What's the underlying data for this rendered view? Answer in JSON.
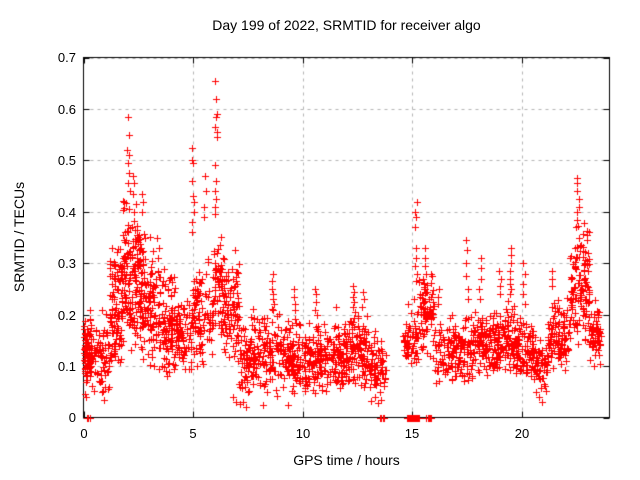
{
  "figure": {
    "title": "Day 199 of 2022, SRMTID for receiver algo",
    "background_color": "#ffffff",
    "border_color": "#000000",
    "grid_color": "#b4b4b4"
  },
  "chart_data": {
    "type": "scatter",
    "title": "Day 199 of 2022, SRMTID for receiver algo",
    "xlabel": "GPS time / hours",
    "ylabel": "SRMTID / TECUs",
    "xlim": [
      0,
      24
    ],
    "ylim": [
      0,
      0.7
    ],
    "xticks": [
      0,
      5,
      10,
      15,
      20
    ],
    "yticks": [
      0,
      0.1,
      0.2,
      0.3,
      0.4,
      0.5,
      0.6,
      0.7
    ],
    "xtick_labels": [
      "0",
      "5",
      "10",
      "15",
      "20"
    ],
    "ytick_labels": [
      "0",
      "0.1",
      "0.2",
      "0.3",
      "0.4",
      "0.5",
      "0.6",
      "0.7"
    ],
    "grid": true,
    "legend": "none",
    "marker": "plus",
    "marker_color": "#ff0000",
    "series_name": "SRMTID",
    "data_gap_hours": [
      13.8,
      14.6
    ],
    "seed": 199,
    "bands": [
      [
        0.0,
        0.35,
        85,
        0.13,
        0.05,
        0.06,
        0.2
      ],
      [
        0.35,
        1.2,
        70,
        0.125,
        0.06,
        0.05,
        0.22
      ],
      [
        1.2,
        1.8,
        110,
        0.2,
        0.1,
        0.08,
        0.4
      ],
      [
        1.8,
        2.6,
        150,
        0.28,
        0.11,
        0.12,
        0.46
      ],
      [
        2.6,
        3.3,
        110,
        0.23,
        0.1,
        0.1,
        0.42
      ],
      [
        3.3,
        4.2,
        110,
        0.18,
        0.08,
        0.08,
        0.33
      ],
      [
        4.2,
        4.9,
        75,
        0.16,
        0.06,
        0.08,
        0.27
      ],
      [
        4.9,
        5.9,
        95,
        0.2,
        0.08,
        0.1,
        0.35
      ],
      [
        5.9,
        6.3,
        45,
        0.26,
        0.07,
        0.15,
        0.38
      ],
      [
        6.3,
        7.1,
        100,
        0.22,
        0.08,
        0.05,
        0.33
      ],
      [
        7.1,
        7.6,
        50,
        0.1,
        0.06,
        0.02,
        0.18
      ],
      [
        7.6,
        9.0,
        130,
        0.13,
        0.06,
        0.03,
        0.22
      ],
      [
        9.0,
        10.0,
        110,
        0.12,
        0.05,
        0.03,
        0.2
      ],
      [
        10.0,
        11.2,
        120,
        0.115,
        0.05,
        0.04,
        0.19
      ],
      [
        11.2,
        12.1,
        100,
        0.115,
        0.05,
        0.05,
        0.2
      ],
      [
        12.1,
        12.6,
        55,
        0.14,
        0.05,
        0.06,
        0.2
      ],
      [
        12.6,
        13.0,
        50,
        0.13,
        0.05,
        0.05,
        0.2
      ],
      [
        13.0,
        13.8,
        65,
        0.1,
        0.05,
        0.03,
        0.17
      ],
      [
        14.6,
        15.3,
        60,
        0.16,
        0.05,
        0.09,
        0.25
      ],
      [
        15.3,
        16.0,
        80,
        0.2,
        0.06,
        0.11,
        0.29
      ],
      [
        16.0,
        17.3,
        115,
        0.13,
        0.05,
        0.06,
        0.21
      ],
      [
        17.3,
        17.7,
        35,
        0.13,
        0.05,
        0.07,
        0.2
      ],
      [
        17.7,
        18.6,
        90,
        0.14,
        0.05,
        0.07,
        0.22
      ],
      [
        18.6,
        19.7,
        115,
        0.15,
        0.055,
        0.09,
        0.24
      ],
      [
        19.7,
        20.6,
        90,
        0.13,
        0.05,
        0.07,
        0.21
      ],
      [
        20.6,
        21.2,
        55,
        0.1,
        0.05,
        0.03,
        0.16
      ],
      [
        21.2,
        22.2,
        105,
        0.16,
        0.06,
        0.09,
        0.27
      ],
      [
        22.2,
        23.1,
        125,
        0.26,
        0.09,
        0.14,
        0.4
      ],
      [
        23.1,
        23.6,
        55,
        0.16,
        0.05,
        0.1,
        0.23
      ]
    ],
    "spikes": [
      {
        "x": 2.05,
        "ys": [
          0.585,
          0.55,
          0.51,
          0.495,
          0.475,
          0.455,
          0.44
        ]
      },
      {
        "x": 2.3,
        "ys": [
          0.47,
          0.455,
          0.435
        ]
      },
      {
        "x": 2.7,
        "ys": [
          0.435,
          0.42,
          0.4
        ]
      },
      {
        "x": 3.4,
        "ys": [
          0.35,
          0.33,
          0.31
        ]
      },
      {
        "x": 5.0,
        "ys": [
          0.525,
          0.5,
          0.495,
          0.46,
          0.43,
          0.42,
          0.4,
          0.38,
          0.36
        ]
      },
      {
        "x": 5.55,
        "ys": [
          0.47,
          0.44,
          0.41,
          0.39
        ]
      },
      {
        "x": 6.05,
        "ys": [
          0.655,
          0.62,
          0.59,
          0.585,
          0.565,
          0.555,
          0.545,
          0.49,
          0.46,
          0.44,
          0.425,
          0.41,
          0.395
        ]
      },
      {
        "x": 8.65,
        "ys": [
          0.28,
          0.265,
          0.25,
          0.24,
          0.23,
          0.22,
          0.21
        ]
      },
      {
        "x": 9.6,
        "ys": [
          0.25,
          0.235,
          0.22,
          0.21
        ]
      },
      {
        "x": 10.6,
        "ys": [
          0.25,
          0.24,
          0.225,
          0.21,
          0.2
        ]
      },
      {
        "x": 12.35,
        "ys": [
          0.255,
          0.245,
          0.235,
          0.225,
          0.215,
          0.205
        ]
      },
      {
        "x": 12.75,
        "ys": [
          0.245,
          0.23,
          0.215
        ]
      },
      {
        "x": 15.15,
        "ys": [
          0.42,
          0.4,
          0.39,
          0.37,
          0.33,
          0.31,
          0.295,
          0.28,
          0.265
        ]
      },
      {
        "x": 15.55,
        "ys": [
          0.33,
          0.31,
          0.295,
          0.28,
          0.27,
          0.26,
          0.25
        ]
      },
      {
        "x": 16.2,
        "ys": [
          0.25,
          0.235,
          0.22
        ]
      },
      {
        "x": 17.5,
        "ys": [
          0.345,
          0.325,
          0.3,
          0.275,
          0.25,
          0.23
        ]
      },
      {
        "x": 18.1,
        "ys": [
          0.31,
          0.29,
          0.27,
          0.25,
          0.23
        ]
      },
      {
        "x": 19.0,
        "ys": [
          0.285,
          0.27,
          0.255,
          0.24
        ]
      },
      {
        "x": 19.45,
        "ys": [
          0.33,
          0.315,
          0.3,
          0.285,
          0.27,
          0.26,
          0.25,
          0.24
        ]
      },
      {
        "x": 20.1,
        "ys": [
          0.3,
          0.28,
          0.26,
          0.24,
          0.22
        ]
      },
      {
        "x": 21.4,
        "ys": [
          0.285,
          0.27,
          0.255
        ]
      },
      {
        "x": 22.55,
        "ys": [
          0.465,
          0.455,
          0.44,
          0.425,
          0.41,
          0.4,
          0.385,
          0.37
        ]
      }
    ],
    "points": [
      [
        0.05,
        0.045
      ],
      [
        0.12,
        0.04
      ],
      [
        0.3,
        0.21
      ],
      [
        0.85,
        0.05
      ],
      [
        0.92,
        0.035
      ],
      [
        1.0,
        0.06
      ],
      [
        2.0,
        0.52
      ],
      [
        6.8,
        0.04
      ],
      [
        6.95,
        0.03
      ],
      [
        7.3,
        0.03
      ],
      [
        7.42,
        0.02
      ],
      [
        7.5,
        0.05
      ],
      [
        8.2,
        0.025
      ],
      [
        9.35,
        0.025
      ],
      [
        11.5,
        0.215
      ],
      [
        13.3,
        0.04
      ],
      [
        13.45,
        0.028
      ],
      [
        13.55,
        0.05
      ],
      [
        14.7,
        0.12
      ],
      [
        14.75,
        0.15
      ],
      [
        20.8,
        0.04
      ],
      [
        20.92,
        0.03
      ],
      [
        23.3,
        0.1
      ]
    ],
    "zeros": [
      [
        0.18,
        2
      ],
      [
        0.3,
        1
      ],
      [
        13.55,
        2
      ],
      [
        13.68,
        2
      ],
      [
        14.88,
        6
      ],
      [
        15.05,
        6
      ],
      [
        15.2,
        5
      ],
      [
        15.75,
        5
      ]
    ]
  }
}
